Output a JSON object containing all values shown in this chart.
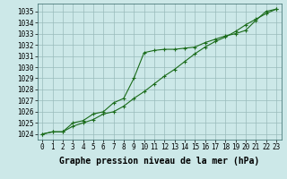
{
  "background_color": "#cce8e8",
  "grid_color": "#99bbbb",
  "line_color": "#1a6b1a",
  "xlabel": "Graphe pression niveau de la mer (hPa)",
  "xlabel_fontsize": 7,
  "ylabel_ticks": [
    1024,
    1025,
    1026,
    1027,
    1028,
    1029,
    1030,
    1031,
    1032,
    1033,
    1034,
    1035
  ],
  "xlim": [
    -0.5,
    23.5
  ],
  "ylim": [
    1023.5,
    1035.7
  ],
  "xticks": [
    0,
    1,
    2,
    3,
    4,
    5,
    6,
    7,
    8,
    9,
    10,
    11,
    12,
    13,
    14,
    15,
    16,
    17,
    18,
    19,
    20,
    21,
    22,
    23
  ],
  "hours": [
    0,
    1,
    2,
    3,
    4,
    5,
    6,
    7,
    8,
    9,
    10,
    11,
    12,
    13,
    14,
    15,
    16,
    17,
    18,
    19,
    20,
    21,
    22,
    23
  ],
  "line1": [
    1024.0,
    1024.2,
    1024.2,
    1024.7,
    1025.0,
    1025.3,
    1025.8,
    1026.0,
    1026.5,
    1027.2,
    1027.8,
    1028.5,
    1029.2,
    1029.8,
    1030.5,
    1031.2,
    1031.8,
    1032.3,
    1032.7,
    1033.2,
    1033.8,
    1034.3,
    1034.8,
    1035.2
  ],
  "line2": [
    1024.0,
    1024.2,
    1024.2,
    1025.0,
    1025.2,
    1025.8,
    1026.0,
    1026.8,
    1027.2,
    1029.0,
    1031.3,
    1031.5,
    1031.6,
    1031.6,
    1031.7,
    1031.8,
    1032.2,
    1032.5,
    1032.8,
    1033.0,
    1033.3,
    1034.2,
    1035.0,
    1035.2
  ],
  "tick_fontsize": 5.5,
  "marker": "+",
  "marker_size": 3,
  "linewidth": 0.8,
  "figsize": [
    3.2,
    2.0
  ],
  "dpi": 100
}
